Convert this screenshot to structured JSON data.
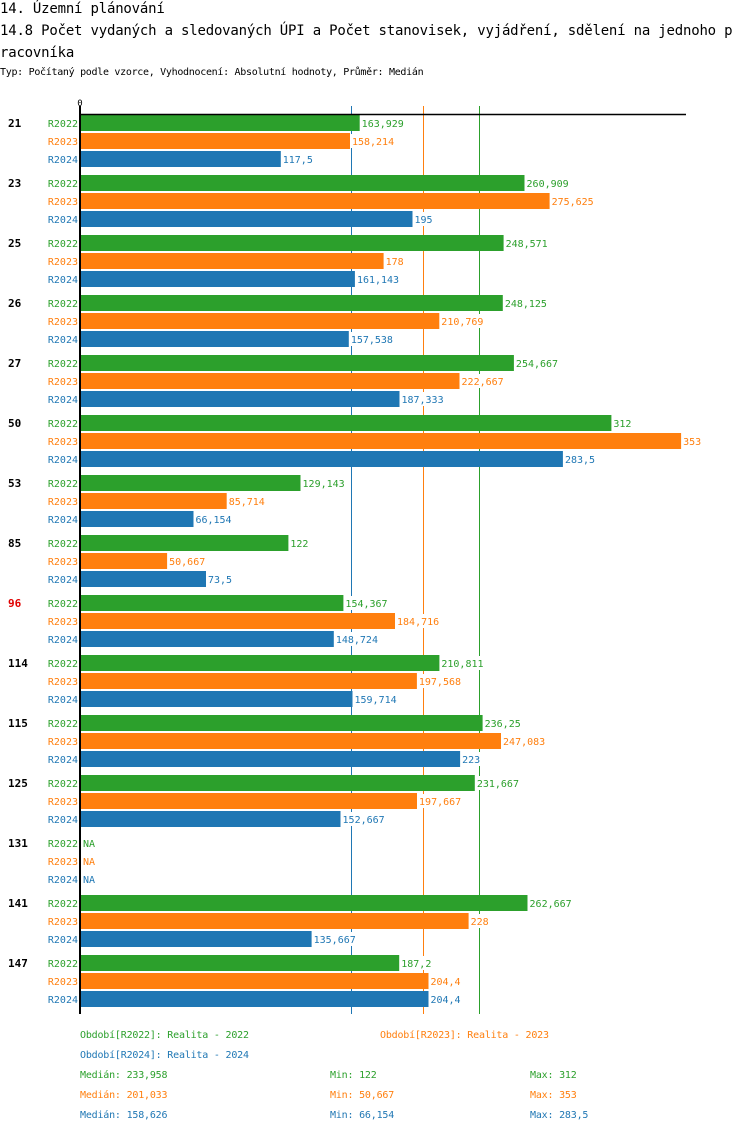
{
  "header": {
    "section_title": "14. Územní plánování",
    "chart_title": "14.8 Počet vydaných a sledovaných ÚPI a Počet stanovisek, vyjádření, sdělení na jednoho pracovníka",
    "subtitle": "Typ: Počítaný podle vzorce, Vyhodnocení: Absolutní hodnoty, Průměr: Medián"
  },
  "colors": {
    "R2022": "#2ca02c",
    "R2023": "#ff7f0e",
    "R2024": "#1f77b4",
    "highlight_category": "#e00000",
    "axis": "#000000"
  },
  "chart_data": {
    "type": "bar",
    "orientation": "horizontal",
    "title": "14.8 Počet vydaných a sledovaných ÚPI a Počet stanovisek, vyjádření, sdělení na jednoho pracovníka",
    "xlabel": "",
    "ylabel": "",
    "x_tick_labels": [
      "0"
    ],
    "xlim": [
      0,
      353
    ],
    "grid": false,
    "legend_position": "bottom",
    "categories": [
      "21",
      "23",
      "25",
      "26",
      "27",
      "50",
      "53",
      "85",
      "96",
      "114",
      "115",
      "125",
      "131",
      "141",
      "147"
    ],
    "highlighted_category": "96",
    "series": [
      {
        "name": "R2022",
        "legend": "Období[R2022]: Realita - 2022",
        "values": [
          163.929,
          260.909,
          248.571,
          248.125,
          254.667,
          312,
          129.143,
          122,
          154.367,
          210.811,
          236.25,
          231.667,
          null,
          262.667,
          187.2
        ],
        "labels": [
          "163,929",
          "260,909",
          "248,571",
          "248,125",
          "254,667",
          "312",
          "129,143",
          "122",
          "154,367",
          "210,811",
          "236,25",
          "231,667",
          "NA",
          "262,667",
          "187,2"
        ],
        "median": 233.958,
        "median_label": "Medián: 233,958",
        "min_label": "Min: 122",
        "max_label": "Max: 312"
      },
      {
        "name": "R2023",
        "legend": "Období[R2023]: Realita - 2023",
        "values": [
          158.214,
          275.625,
          178,
          210.769,
          222.667,
          353,
          85.714,
          50.667,
          184.716,
          197.568,
          247.083,
          197.667,
          null,
          228,
          204.4
        ],
        "labels": [
          "158,214",
          "275,625",
          "178",
          "210,769",
          "222,667",
          "353",
          "85,714",
          "50,667",
          "184,716",
          "197,568",
          "247,083",
          "197,667",
          "NA",
          "228",
          "204,4"
        ],
        "median": 201.033,
        "median_label": "Medián: 201,033",
        "min_label": "Min: 50,667",
        "max_label": "Max: 353"
      },
      {
        "name": "R2024",
        "legend": "Období[R2024]: Realita - 2024",
        "values": [
          117.5,
          195,
          161.143,
          157.538,
          187.333,
          283.5,
          66.154,
          73.5,
          148.724,
          159.714,
          223,
          152.667,
          null,
          135.667,
          204.4
        ],
        "labels": [
          "117,5",
          "195",
          "161,143",
          "157,538",
          "187,333",
          "283,5",
          "66,154",
          "73,5",
          "148,724",
          "159,714",
          "223",
          "152,667",
          "NA",
          "135,667",
          "204,4"
        ],
        "median": 158.626,
        "median_label": "Medián: 158,626",
        "min_label": "Min: 66,154",
        "max_label": "Max: 283,5"
      }
    ]
  }
}
